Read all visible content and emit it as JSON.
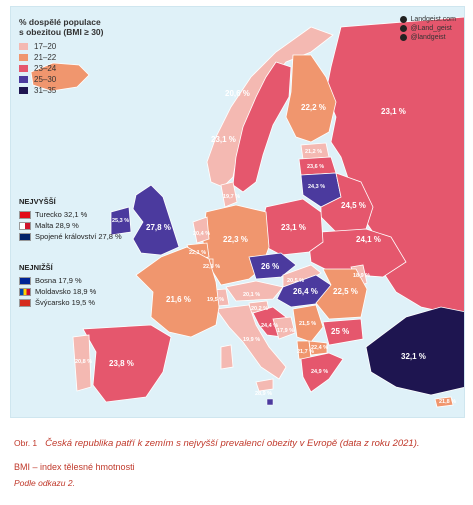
{
  "legend": {
    "title": "% dospělé populace\ns obezitou (BMI ≥ 30)",
    "items": [
      {
        "label": "17–20",
        "color": "#f4b9b2"
      },
      {
        "label": "21–22",
        "color": "#f0966e"
      },
      {
        "label": "23–24",
        "color": "#e5576d"
      },
      {
        "label": "25–30",
        "color": "#4b3a9e"
      },
      {
        "label": "31–35",
        "color": "#1e1550"
      }
    ]
  },
  "brand": [
    "Landgeist.com",
    "@Land_geist",
    "@landgeist"
  ],
  "highest": {
    "heading": "NEJVYŠŠÍ",
    "rows": [
      {
        "text": "Turecko 32,1 %",
        "flag": "turkey-flag"
      },
      {
        "text": "Malta 28,9 %",
        "flag": "malta-flag"
      },
      {
        "text": "Spojené království 27,8 %",
        "flag": "uk-flag"
      }
    ]
  },
  "lowest": {
    "heading": "NEJNIŽŠÍ",
    "rows": [
      {
        "text": "Bosna 17,9 %",
        "flag": "bosnia-flag"
      },
      {
        "text": "Moldavsko 18,9 %",
        "flag": "moldova-flag"
      },
      {
        "text": "Švýcarsko 19,5 %",
        "flag": "switzerland-flag"
      }
    ]
  },
  "labels": {
    "norway": "20,6 %",
    "finland": "22,2 %",
    "russia": "23,1 %",
    "sweden_south": "23,1 %",
    "uk": "27,8 %",
    "ireland": "25,3 %",
    "estonia": "21,2 %",
    "latvia": "23,6 %",
    "lithuania": "24,3 %",
    "belarus": "24,5 %",
    "poland": "23,1 %",
    "ukraine": "24,1 %",
    "germany": "22,3 %",
    "czech": "26 %",
    "hungary": "26,4 %",
    "romania": "22,5 %",
    "france": "21,6 %",
    "spain": "23,8 %",
    "italy": "19,9 %",
    "bulgaria": "25 %",
    "turkey": "32,1 %",
    "greece": "24,9 %",
    "denmark": "19,7 %",
    "netherlands": "20,4 %",
    "belgium": "22,1 %",
    "luxembourg": "22,6 %",
    "switzerland": "19,5 %",
    "austria": "20,1 %",
    "slovakia": "20,5 %",
    "slovenia": "20,2 %",
    "croatia": "24,4 %",
    "bosnia": "17,9 %",
    "serbia": "21,5 %",
    "moldova": "18,9 %",
    "albania": "21,7 %",
    "macedonia": "22,4 %",
    "portugal": "20,8 %",
    "cyprus": "21,8 %",
    "malta": "28,9 %"
  },
  "caption": {
    "fig": "Obr. 1",
    "title": "Česká republika patří k zemím s nejvyšší prevalencí obezity v Evropě (data z roku 2021).",
    "bmi": "BMI – index tělesné hmotnosti",
    "source": "Podle odkazu 2."
  }
}
